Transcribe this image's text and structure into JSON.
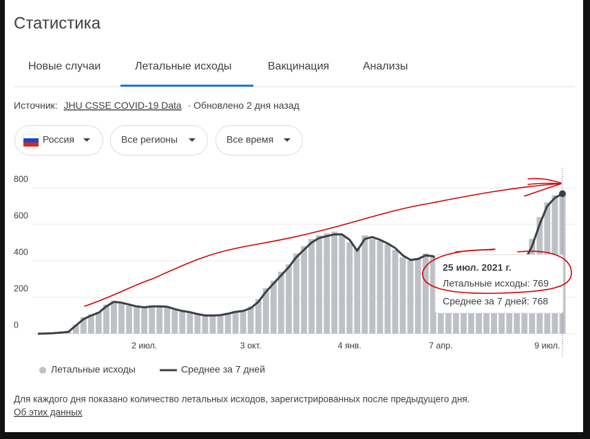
{
  "header": {
    "title": "Статистика"
  },
  "tabs": [
    "Новые случаи",
    "Летальные исходы",
    "Вакцинация",
    "Анализы"
  ],
  "source": {
    "label": "Источник:",
    "link": "JHU CSSE COVID-19 Data",
    "updated": "· Обновлено 2 дня назад"
  },
  "filters": [
    "Россия",
    "Все регионы",
    "Все время"
  ],
  "chart_data": {
    "type": "bar",
    "categories": [
      null,
      null,
      null,
      null,
      null,
      null,
      null,
      null,
      null,
      null,
      null,
      null,
      null,
      null,
      "2 июл.",
      null,
      null,
      null,
      null,
      null,
      null,
      null,
      null,
      null,
      null,
      null,
      null,
      null,
      "3 окт.",
      null,
      null,
      null,
      null,
      null,
      null,
      null,
      null,
      null,
      null,
      null,
      null,
      "4 янв.",
      null,
      null,
      null,
      null,
      null,
      null,
      null,
      null,
      null,
      null,
      null,
      "7 апр.",
      null,
      null,
      null,
      null,
      null,
      null,
      null,
      null,
      null,
      null,
      null,
      null,
      null,
      "9 июл.",
      null,
      null
    ],
    "series": [
      {
        "name": "Летальные исходы",
        "type": "bar",
        "color": "#bdc1c6",
        "values": [
          1,
          2,
          4,
          8,
          14,
          50,
          90,
          105,
          120,
          160,
          180,
          165,
          155,
          150,
          140,
          155,
          145,
          150,
          130,
          128,
          115,
          110,
          98,
          104,
          100,
          115,
          125,
          130,
          150,
          190,
          250,
          290,
          340,
          380,
          440,
          480,
          520,
          540,
          550,
          560,
          540,
          500,
          470,
          540,
          520,
          510,
          490,
          460,
          420,
          400,
          415,
          440,
          420,
          385,
          375,
          370,
          365,
          360,
          355,
          358,
          368,
          385,
          392,
          398,
          420,
          520,
          640,
          720,
          760,
          769
        ]
      },
      {
        "name": "Среднее за 7 дней",
        "type": "line",
        "color": "#3c4043",
        "values": [
          0,
          1,
          3,
          6,
          10,
          45,
          80,
          100,
          115,
          150,
          175,
          170,
          160,
          150,
          145,
          150,
          150,
          148,
          135,
          125,
          118,
          108,
          100,
          100,
          102,
          110,
          120,
          125,
          140,
          175,
          230,
          275,
          320,
          365,
          420,
          460,
          500,
          525,
          535,
          545,
          545,
          515,
          455,
          520,
          530,
          515,
          495,
          470,
          430,
          405,
          410,
          430,
          425,
          390,
          380,
          375,
          370,
          365,
          360,
          360,
          365,
          380,
          390,
          395,
          400,
          480,
          600,
          700,
          745,
          768
        ]
      }
    ],
    "ylim": [
      0,
      900
    ],
    "yticks": [
      0,
      200,
      400,
      600,
      800
    ],
    "grid": true,
    "tooltip": {
      "title": "25 июл. 2021 г.",
      "lines": [
        "Летальные исходы: 769",
        "Среднее за 7 дней: 768"
      ]
    }
  },
  "footer": {
    "note": "Для каждого дня показано количество летальных исходов, зарегистрированных после предыдущего дня.",
    "link": "Об этих данных"
  }
}
